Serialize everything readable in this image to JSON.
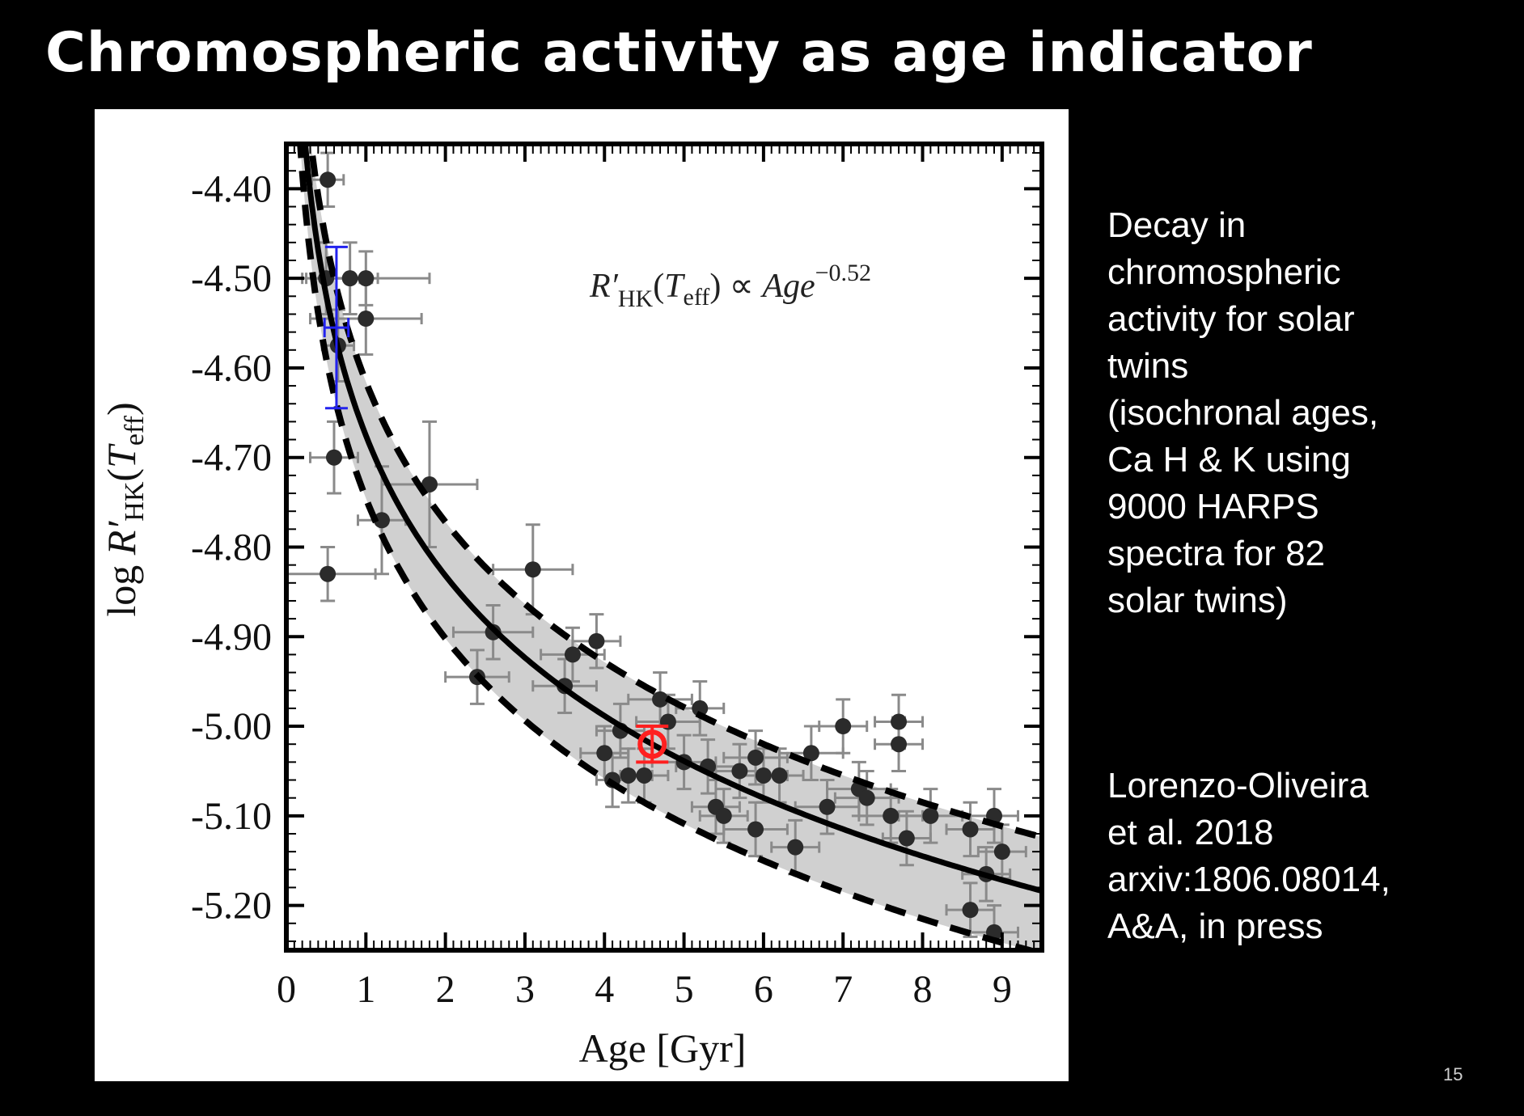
{
  "slide": {
    "title": "Chromospheric activity as age indicator",
    "description": "Decay in\nchromospheric\nactivity for solar\ntwins\n(isochronal ages,\nCa H & K using\n9000 HARPS\nspectra for 82\nsolar twins)",
    "reference": "Lorenzo-Oliveira\net al. 2018\narxiv:1806.08014,\nA&A, in press",
    "page_number": "15"
  },
  "chart_data": {
    "type": "scatter",
    "title": "",
    "xlabel": "Age [Gyr]",
    "ylabel": "log R′HK(Teff)",
    "xlim": [
      0,
      9.5
    ],
    "ylim": [
      -5.25,
      -4.35
    ],
    "xticks": [
      "0",
      "1",
      "2",
      "3",
      "4",
      "5",
      "6",
      "7",
      "8",
      "9"
    ],
    "yticks": [
      "-4.40",
      "-4.50",
      "-4.60",
      "-4.70",
      "-4.80",
      "-4.90",
      "-5.00",
      "-5.10",
      "-5.20"
    ],
    "ytick_values": [
      -4.4,
      -4.5,
      -4.6,
      -4.7,
      -4.8,
      -4.9,
      -5.0,
      -5.1,
      -5.2
    ],
    "annotation": "R′HK(Teff) ∝ Age^−0.52",
    "fit": {
      "form": "power-law",
      "exponent": -0.52,
      "ref_age": 4.6,
      "ref_value": -5.02
    },
    "band": {
      "lower_offset": -0.07,
      "upper_offset": 0.06
    },
    "colors": {
      "points": "#2b2b2b",
      "errorbars": "#8a8a8a",
      "band": "#d0d0d0",
      "fit": "#000000",
      "sun": "#ff2020",
      "highlight": "#2222ee"
    },
    "points": [
      {
        "x": 0.52,
        "y": -4.39,
        "xe": 0.2,
        "ye": 0.03
      },
      {
        "x": 0.5,
        "y": -4.5,
        "xe": 0.25,
        "ye": 0.04
      },
      {
        "x": 0.8,
        "y": -4.5,
        "xe": 0.35,
        "ye": 0.04
      },
      {
        "x": 1.0,
        "y": -4.5,
        "xe": 0.8,
        "ye": 0.03
      },
      {
        "x": 1.0,
        "y": -4.545,
        "xe": 0.7,
        "ye": 0.04
      },
      {
        "x": 0.65,
        "y": -4.575,
        "xe": 0.2,
        "ye": 0.04
      },
      {
        "x": 0.6,
        "y": -4.7,
        "xe": 0.3,
        "ye": 0.04
      },
      {
        "x": 0.52,
        "y": -4.83,
        "xe": 0.6,
        "ye": 0.03
      },
      {
        "x": 1.2,
        "y": -4.77,
        "xe": 0.3,
        "ye": 0.06
      },
      {
        "x": 1.8,
        "y": -4.73,
        "xe": 0.6,
        "ye": 0.07
      },
      {
        "x": 3.1,
        "y": -4.825,
        "xe": 0.5,
        "ye": 0.05
      },
      {
        "x": 2.4,
        "y": -4.945,
        "xe": 0.4,
        "ye": 0.03
      },
      {
        "x": 2.6,
        "y": -4.895,
        "xe": 0.5,
        "ye": 0.03
      },
      {
        "x": 3.6,
        "y": -4.92,
        "xe": 0.4,
        "ye": 0.03
      },
      {
        "x": 3.9,
        "y": -4.905,
        "xe": 0.3,
        "ye": 0.03
      },
      {
        "x": 3.5,
        "y": -4.955,
        "xe": 0.4,
        "ye": 0.03
      },
      {
        "x": 4.2,
        "y": -5.005,
        "xe": 0.3,
        "ye": 0.03
      },
      {
        "x": 4.0,
        "y": -5.03,
        "xe": 0.3,
        "ye": 0.03
      },
      {
        "x": 4.1,
        "y": -5.06,
        "xe": 0.2,
        "ye": 0.03
      },
      {
        "x": 4.3,
        "y": -5.055,
        "xe": 0.3,
        "ye": 0.03
      },
      {
        "x": 4.5,
        "y": -5.055,
        "xe": 0.3,
        "ye": 0.03
      },
      {
        "x": 4.7,
        "y": -4.97,
        "xe": 0.4,
        "ye": 0.03
      },
      {
        "x": 4.8,
        "y": -4.995,
        "xe": 0.4,
        "ye": 0.03
      },
      {
        "x": 5.2,
        "y": -4.98,
        "xe": 0.3,
        "ye": 0.03
      },
      {
        "x": 5.0,
        "y": -5.04,
        "xe": 0.4,
        "ye": 0.03
      },
      {
        "x": 5.3,
        "y": -5.045,
        "xe": 0.4,
        "ye": 0.03
      },
      {
        "x": 5.4,
        "y": -5.09,
        "xe": 0.3,
        "ye": 0.03
      },
      {
        "x": 5.5,
        "y": -5.1,
        "xe": 0.3,
        "ye": 0.03
      },
      {
        "x": 5.7,
        "y": -5.05,
        "xe": 0.3,
        "ye": 0.03
      },
      {
        "x": 5.9,
        "y": -5.035,
        "xe": 0.4,
        "ye": 0.03
      },
      {
        "x": 6.0,
        "y": -5.055,
        "xe": 0.3,
        "ye": 0.03
      },
      {
        "x": 6.2,
        "y": -5.055,
        "xe": 0.3,
        "ye": 0.03
      },
      {
        "x": 5.9,
        "y": -5.115,
        "xe": 0.4,
        "ye": 0.03
      },
      {
        "x": 6.4,
        "y": -5.135,
        "xe": 0.3,
        "ye": 0.03
      },
      {
        "x": 6.6,
        "y": -5.03,
        "xe": 0.4,
        "ye": 0.03
      },
      {
        "x": 6.8,
        "y": -5.09,
        "xe": 0.4,
        "ye": 0.03
      },
      {
        "x": 7.0,
        "y": -5.0,
        "xe": 0.3,
        "ye": 0.03
      },
      {
        "x": 7.2,
        "y": -5.07,
        "xe": 0.4,
        "ye": 0.03
      },
      {
        "x": 7.3,
        "y": -5.08,
        "xe": 0.4,
        "ye": 0.03
      },
      {
        "x": 7.7,
        "y": -4.995,
        "xe": 0.3,
        "ye": 0.03
      },
      {
        "x": 7.7,
        "y": -5.02,
        "xe": 0.3,
        "ye": 0.03
      },
      {
        "x": 7.8,
        "y": -5.125,
        "xe": 0.3,
        "ye": 0.03
      },
      {
        "x": 7.6,
        "y": -5.1,
        "xe": 0.4,
        "ye": 0.03
      },
      {
        "x": 8.1,
        "y": -5.1,
        "xe": 0.4,
        "ye": 0.03
      },
      {
        "x": 8.6,
        "y": -5.115,
        "xe": 0.3,
        "ye": 0.03
      },
      {
        "x": 8.9,
        "y": -5.1,
        "xe": 0.3,
        "ye": 0.03
      },
      {
        "x": 8.8,
        "y": -5.165,
        "xe": 0.3,
        "ye": 0.03
      },
      {
        "x": 9.0,
        "y": -5.14,
        "xe": 0.3,
        "ye": 0.03
      },
      {
        "x": 8.6,
        "y": -5.205,
        "xe": 0.3,
        "ye": 0.03
      },
      {
        "x": 8.9,
        "y": -5.23,
        "xe": 0.3,
        "ye": 0.03
      }
    ],
    "sun": {
      "x": 4.6,
      "y": -5.02,
      "ye": 0.02
    },
    "highlight_errorbar": {
      "x": 0.63,
      "y": -4.555,
      "xe": 0.15,
      "ye": 0.09
    }
  }
}
